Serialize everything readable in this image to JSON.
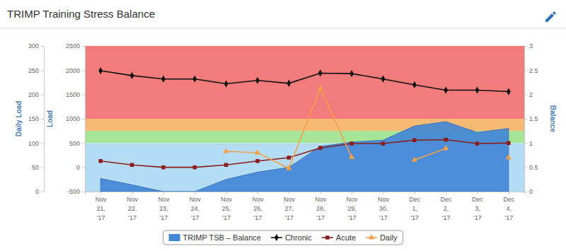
{
  "chart_data": {
    "type": "line",
    "title": "TRIMP Training Stress Balance",
    "categories": [
      "Nov 21, '17",
      "Nov 22, '17",
      "Nov 23, '17",
      "Nov 24, '17",
      "Nov 25, '17",
      "Nov 26, '17",
      "Nov 27, '17",
      "Nov 28, '17",
      "Nov 29, '17",
      "Nov 30, '17",
      "Dec 1, '17",
      "Dec 2, '17",
      "Dec 3, '17",
      "Dec 4, '17"
    ],
    "ylabel": "Load",
    "ylim": [
      -500,
      2500
    ],
    "yticks": [
      -500,
      0,
      500,
      1000,
      1500,
      2000,
      2500
    ],
    "y2label": "Balance",
    "y2lim": [
      0,
      3
    ],
    "y2ticks": [
      0,
      0.5,
      1,
      1.5,
      2,
      2.5,
      3
    ],
    "y3label": "Daily Load",
    "y3lim": [
      0,
      300
    ],
    "y3ticks": [
      0,
      50,
      100,
      150,
      200,
      250,
      300
    ],
    "zones": [
      {
        "from": 0,
        "to": 1,
        "color": "#b5dcf5"
      },
      {
        "from": 1,
        "to": 1.25,
        "color": "#a6e597"
      },
      {
        "from": 1.25,
        "to": 1.5,
        "color": "#f6ba74"
      },
      {
        "from": 1.5,
        "to": 3,
        "color": "#f27c7c"
      }
    ],
    "grid": false,
    "legend": "bottom",
    "series": [
      {
        "name": "TRIMP TSB – Balance",
        "type": "area",
        "color": "#4387d6",
        "axis": "y2",
        "values": [
          0.27,
          0.14,
          0,
          0,
          0.25,
          0.4,
          0.5,
          0.93,
          1.02,
          1.06,
          1.35,
          1.44,
          1.22,
          1.3
        ]
      },
      {
        "name": "Chronic",
        "type": "line",
        "color": "#111111",
        "marker": "diamond",
        "line_style": "solid",
        "values": [
          1990,
          1890,
          1820,
          1820,
          1720,
          1790,
          1730,
          1940,
          1930,
          1820,
          1700,
          1590,
          1590,
          1560
        ]
      },
      {
        "name": "Acute",
        "type": "line",
        "color": "#8b1c1c",
        "marker": "square",
        "line_style": "solid",
        "values": [
          130,
          50,
          0,
          0,
          50,
          130,
          200,
          400,
          490,
          490,
          560,
          570,
          490,
          500
        ]
      },
      {
        "name": "Daily",
        "type": "line",
        "color": "#f5a04a",
        "marker": "triangle",
        "line_style": "solid",
        "axis": "y3",
        "values": [
          null,
          null,
          null,
          null,
          83,
          80,
          48,
          212,
          71,
          null,
          65,
          89,
          null,
          70
        ]
      }
    ]
  }
}
